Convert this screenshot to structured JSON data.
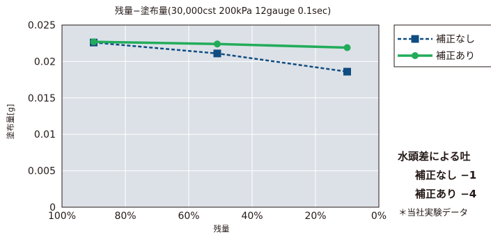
{
  "chart_data": {
    "type": "line",
    "title": "残量−塗布量(30,000cst 200kPa 12gauge 0.1sec)",
    "xlabel": "残量",
    "ylabel": "塗布量[g]",
    "x_ticks": [
      "100%",
      "80%",
      "60%",
      "40%",
      "20%",
      "0%"
    ],
    "y_ticks": [
      "0",
      "0.005",
      "0.01",
      "0.015",
      "0.02",
      "0.025"
    ],
    "xlim": [
      100,
      0
    ],
    "ylim": [
      0,
      0.025
    ],
    "x_reversed": true,
    "grid": true,
    "legend_position": "top-right (outside plot)",
    "series": [
      {
        "name": "補正なし",
        "color": "#0F4C81",
        "style": "dashed",
        "marker": "square",
        "x": [
          90,
          51,
          10
        ],
        "y": [
          0.0226,
          0.0211,
          0.0186
        ]
      },
      {
        "name": "補正あり",
        "color": "#22AC5A",
        "style": "solid",
        "marker": "circle",
        "x": [
          90,
          51,
          10
        ],
        "y": [
          0.0227,
          0.0224,
          0.0219
        ]
      }
    ],
    "plot_background": "#DCE1E7",
    "grid_color": "#FFFFFF"
  },
  "note": {
    "heading": "水頭差による吐",
    "line_1": "補正なし −1",
    "line_2": "補正あり −4",
    "footnote": "＊当社実験データ"
  }
}
